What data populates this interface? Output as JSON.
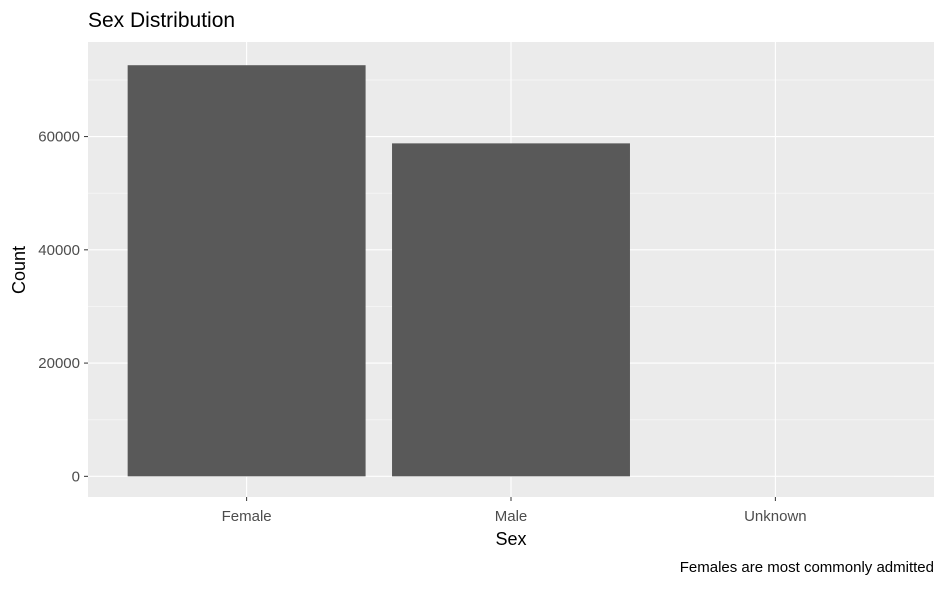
{
  "chart_data": {
    "type": "bar",
    "title": "Sex Distribution",
    "xlabel": "Sex",
    "ylabel": "Count",
    "caption": "Females are most commonly admitted",
    "categories": [
      "Female",
      "Male",
      "Unknown"
    ],
    "values": [
      72600,
      58800,
      2
    ],
    "ylim": [
      -3650,
      76700
    ],
    "y_ticks": [
      0,
      20000,
      40000,
      60000
    ],
    "y_tick_labels": [
      "0",
      "20000",
      "40000",
      "60000"
    ],
    "grid": true,
    "legend": "none",
    "colors": {
      "panel_background": "#ebebeb",
      "grid_major": "#ffffff",
      "grid_minor": "#f4f4f4",
      "bar_fill": "#595959",
      "tick_label": "#4d4d4d",
      "axis_title": "#000000"
    }
  }
}
